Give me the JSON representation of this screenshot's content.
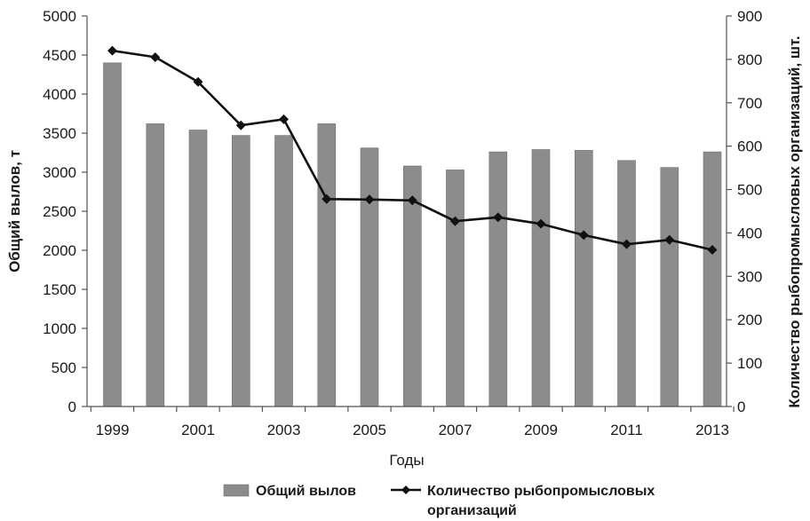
{
  "chart_data": {
    "type": "bar",
    "title": "",
    "xlabel": "Годы",
    "ylabel_left": "Общий вылов, т",
    "ylabel_right": "Количество рыбопромысловых организаций, шт.",
    "x": [
      1999,
      2000,
      2001,
      2002,
      2003,
      2004,
      2005,
      2006,
      2007,
      2008,
      2009,
      2010,
      2011,
      2012,
      2013
    ],
    "x_tick_labels": [
      "1999",
      "2001",
      "2003",
      "2005",
      "2007",
      "2009",
      "2011",
      "2013"
    ],
    "x_tick_values": [
      1999,
      2001,
      2003,
      2005,
      2007,
      2009,
      2011,
      2013
    ],
    "ylim_left": [
      0,
      5000
    ],
    "yticks_left": [
      0,
      500,
      1000,
      1500,
      2000,
      2500,
      3000,
      3500,
      4000,
      4500,
      5000
    ],
    "ylim_right": [
      0,
      900
    ],
    "yticks_right": [
      0,
      100,
      200,
      300,
      400,
      500,
      600,
      700,
      800,
      900
    ],
    "grid": false,
    "legend_position": "bottom",
    "series": [
      {
        "name": "Общий вылов",
        "type": "bar",
        "axis": "left",
        "color": "#8c8c8c",
        "values": [
          4400,
          3620,
          3540,
          3470,
          3470,
          3620,
          3310,
          3080,
          3030,
          3260,
          3290,
          3280,
          3150,
          3060,
          3260
        ]
      },
      {
        "name": "Количество рыбопромысловых организаций",
        "legend_lines": [
          "Количество рыбопромысловых",
          "организаций"
        ],
        "type": "line",
        "axis": "right",
        "color": "#111111",
        "values": [
          820,
          805,
          748,
          648,
          662,
          478,
          477,
          475,
          427,
          436,
          421,
          395,
          374,
          384,
          361
        ]
      }
    ]
  }
}
